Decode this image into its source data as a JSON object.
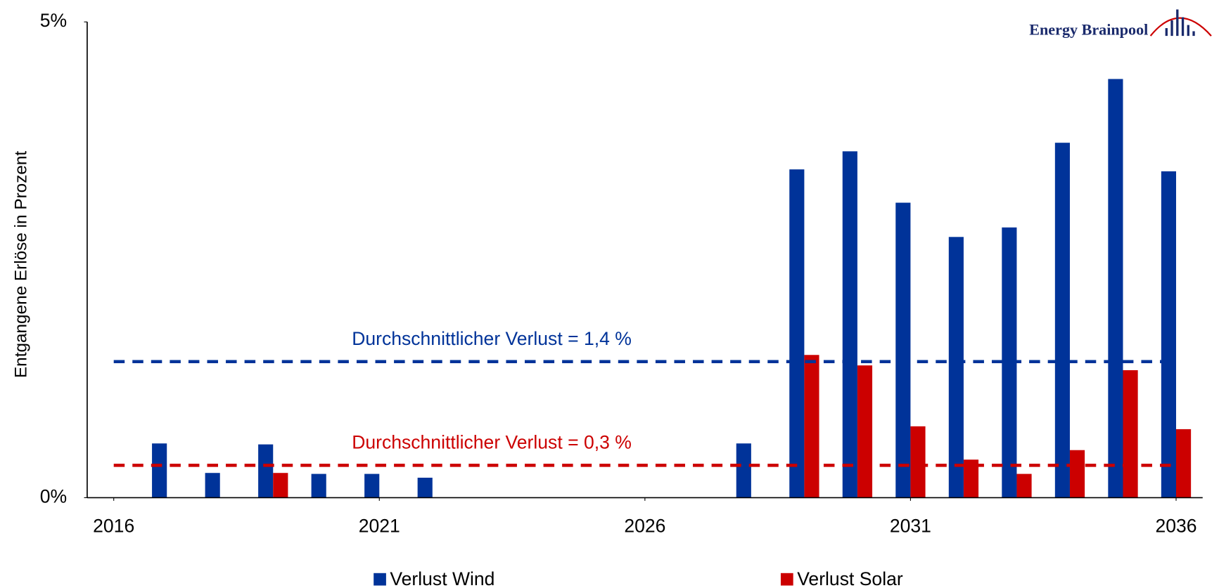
{
  "chart_data": {
    "type": "bar",
    "y_label": "Entgangene Erlöse in Prozent",
    "logo": "Energy Brainpool",
    "x": [
      2016,
      2017,
      2018,
      2019,
      2020,
      2021,
      2022,
      2023,
      2024,
      2025,
      2026,
      2027,
      2028,
      2029,
      2030,
      2031,
      2032,
      2033,
      2034,
      2035,
      2036
    ],
    "xlim": [
      2015.5,
      2036.5
    ],
    "xticks": [
      2016,
      2021,
      2026,
      2031,
      2036
    ],
    "ylim": [
      0,
      5
    ],
    "yticks": [
      {
        "value": 0,
        "label": "0%"
      },
      {
        "value": 5,
        "label": "5%"
      }
    ],
    "series": [
      {
        "name": "Verlust Wind",
        "color": "#003399",
        "values": [
          0,
          0.57,
          0.26,
          0.56,
          0.25,
          0.25,
          0.21,
          0,
          0,
          0,
          0,
          0,
          0.57,
          3.45,
          3.64,
          3.1,
          2.74,
          2.84,
          3.73,
          4.4,
          3.43
        ]
      },
      {
        "name": "Verlust Solar",
        "color": "#cc0000",
        "values": [
          0,
          0,
          0,
          0.26,
          0,
          0,
          0,
          0,
          0,
          0,
          0,
          0,
          0,
          1.5,
          1.39,
          0.75,
          0.4,
          0.25,
          0.5,
          1.34,
          0.72
        ]
      }
    ],
    "reference_lines": [
      {
        "value": 1.43,
        "label": "Durchschnittlicher Verlust = 1,4 %",
        "color": "#003399"
      },
      {
        "value": 0.34,
        "label": "Durchschnittlicher Verlust = 0,3 %",
        "color": "#cc0000"
      }
    ]
  }
}
